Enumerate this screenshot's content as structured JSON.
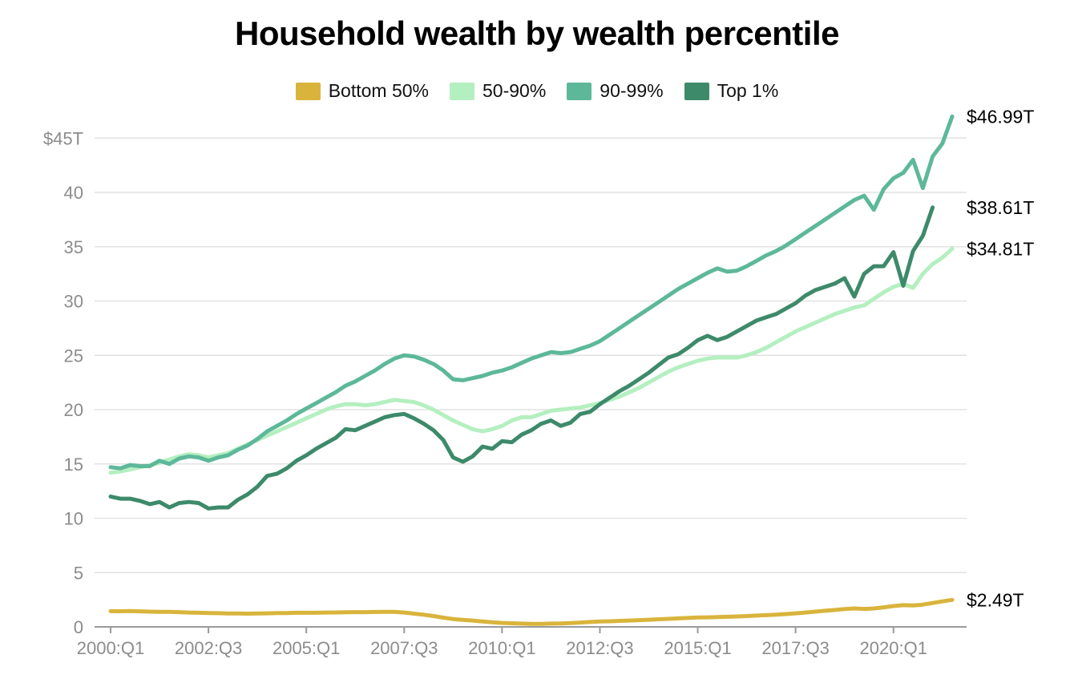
{
  "chart_data": {
    "type": "line",
    "title": "Household wealth by wealth percentile",
    "xlabel": "",
    "ylabel": "",
    "ylim": [
      0,
      47
    ],
    "yticks": [
      {
        "value": 45,
        "label": "$45T"
      },
      {
        "value": 40,
        "label": "40"
      },
      {
        "value": 35,
        "label": "35"
      },
      {
        "value": 30,
        "label": "30"
      },
      {
        "value": 25,
        "label": "25"
      },
      {
        "value": 20,
        "label": "20"
      },
      {
        "value": 15,
        "label": "15"
      },
      {
        "value": 10,
        "label": "10"
      },
      {
        "value": 5,
        "label": "5"
      },
      {
        "value": 0,
        "label": "0"
      }
    ],
    "xticks": [
      {
        "index": 0,
        "label": "2000:Q1"
      },
      {
        "index": 10,
        "label": "2002:Q3"
      },
      {
        "index": 20,
        "label": "2005:Q1"
      },
      {
        "index": 30,
        "label": "2007:Q3"
      },
      {
        "index": 40,
        "label": "2010:Q1"
      },
      {
        "index": 50,
        "label": "2012:Q3"
      },
      {
        "index": 60,
        "label": "2015:Q1"
      },
      {
        "index": 70,
        "label": "2017:Q3"
      },
      {
        "index": 80,
        "label": "2020:Q1"
      }
    ],
    "x_start": "2000:Q1",
    "grid": "horizontal",
    "legend_position": "top",
    "series": [
      {
        "name": "Bottom 50%",
        "color": "#D9B43C",
        "end_label": "$2.49T",
        "values": [
          1.45,
          1.44,
          1.46,
          1.43,
          1.4,
          1.38,
          1.38,
          1.36,
          1.32,
          1.3,
          1.28,
          1.26,
          1.24,
          1.23,
          1.22,
          1.24,
          1.25,
          1.27,
          1.28,
          1.3,
          1.3,
          1.3,
          1.32,
          1.33,
          1.35,
          1.36,
          1.36,
          1.37,
          1.38,
          1.38,
          1.32,
          1.22,
          1.12,
          1.0,
          0.85,
          0.72,
          0.65,
          0.58,
          0.5,
          0.42,
          0.36,
          0.33,
          0.3,
          0.28,
          0.28,
          0.3,
          0.32,
          0.35,
          0.4,
          0.45,
          0.5,
          0.52,
          0.55,
          0.58,
          0.62,
          0.66,
          0.7,
          0.74,
          0.78,
          0.82,
          0.86,
          0.88,
          0.9,
          0.93,
          0.96,
          1.0,
          1.04,
          1.08,
          1.12,
          1.18,
          1.25,
          1.32,
          1.4,
          1.48,
          1.56,
          1.64,
          1.7,
          1.65,
          1.7,
          1.8,
          1.92,
          2.0,
          1.97,
          2.05,
          2.2,
          2.35,
          2.49
        ]
      },
      {
        "name": "50-90%",
        "color": "#B4EFC0",
        "end_label": "$34.81T",
        "values": [
          14.2,
          14.3,
          14.5,
          14.7,
          14.9,
          15.1,
          15.4,
          15.7,
          15.9,
          15.8,
          15.6,
          15.8,
          16.0,
          16.4,
          16.8,
          17.2,
          17.6,
          18.0,
          18.4,
          18.8,
          19.2,
          19.6,
          20.0,
          20.3,
          20.5,
          20.5,
          20.4,
          20.5,
          20.7,
          20.9,
          20.8,
          20.7,
          20.4,
          20.0,
          19.5,
          19.0,
          18.6,
          18.2,
          18.0,
          18.2,
          18.5,
          19.0,
          19.3,
          19.3,
          19.6,
          19.9,
          20.0,
          20.1,
          20.2,
          20.4,
          20.6,
          20.9,
          21.2,
          21.6,
          22.0,
          22.5,
          23.0,
          23.5,
          23.9,
          24.2,
          24.5,
          24.7,
          24.8,
          24.8,
          24.8,
          25.0,
          25.3,
          25.7,
          26.2,
          26.7,
          27.2,
          27.6,
          28.0,
          28.4,
          28.8,
          29.1,
          29.4,
          29.6,
          30.2,
          30.8,
          31.3,
          31.6,
          31.2,
          32.5,
          33.4,
          34.0,
          34.81
        ]
      },
      {
        "name": "90-99%",
        "color": "#5DB89A",
        "end_label": "$46.99T",
        "values": [
          14.7,
          14.6,
          14.9,
          14.8,
          14.8,
          15.3,
          15.0,
          15.5,
          15.7,
          15.6,
          15.3,
          15.6,
          15.8,
          16.3,
          16.7,
          17.3,
          18.0,
          18.5,
          19.0,
          19.6,
          20.1,
          20.6,
          21.1,
          21.6,
          22.2,
          22.6,
          23.1,
          23.6,
          24.2,
          24.7,
          25.0,
          24.9,
          24.6,
          24.2,
          23.6,
          22.8,
          22.7,
          22.9,
          23.1,
          23.4,
          23.6,
          23.9,
          24.3,
          24.7,
          25.0,
          25.3,
          25.2,
          25.3,
          25.6,
          25.9,
          26.3,
          26.9,
          27.5,
          28.1,
          28.7,
          29.3,
          29.9,
          30.5,
          31.1,
          31.6,
          32.1,
          32.6,
          33.0,
          32.7,
          32.8,
          33.2,
          33.7,
          34.2,
          34.6,
          35.1,
          35.7,
          36.3,
          36.9,
          37.5,
          38.1,
          38.7,
          39.3,
          39.7,
          38.4,
          40.3,
          41.3,
          41.8,
          43.0,
          40.4,
          43.3,
          44.5,
          46.99
        ]
      },
      {
        "name": "Top 1%",
        "color": "#3D8A6B",
        "end_label": "$38.61T",
        "values": [
          12.0,
          11.8,
          11.8,
          11.6,
          11.3,
          11.5,
          11.0,
          11.4,
          11.5,
          11.4,
          10.9,
          11.0,
          11.0,
          11.7,
          12.2,
          12.9,
          13.9,
          14.1,
          14.6,
          15.3,
          15.8,
          16.4,
          16.9,
          17.4,
          18.2,
          18.1,
          18.5,
          18.9,
          19.3,
          19.5,
          19.6,
          19.2,
          18.7,
          18.1,
          17.2,
          15.6,
          15.2,
          15.7,
          16.6,
          16.4,
          17.1,
          17.0,
          17.7,
          18.1,
          18.7,
          19.0,
          18.5,
          18.8,
          19.6,
          19.8,
          20.5,
          21.1,
          21.7,
          22.2,
          22.8,
          23.4,
          24.1,
          24.8,
          25.1,
          25.7,
          26.4,
          26.8,
          26.4,
          26.7,
          27.2,
          27.7,
          28.2,
          28.5,
          28.8,
          29.3,
          29.8,
          30.5,
          31.0,
          31.3,
          31.6,
          32.1,
          30.4,
          32.5,
          33.2,
          33.2,
          34.5,
          31.4,
          34.6,
          36.0,
          38.61
        ]
      }
    ]
  }
}
